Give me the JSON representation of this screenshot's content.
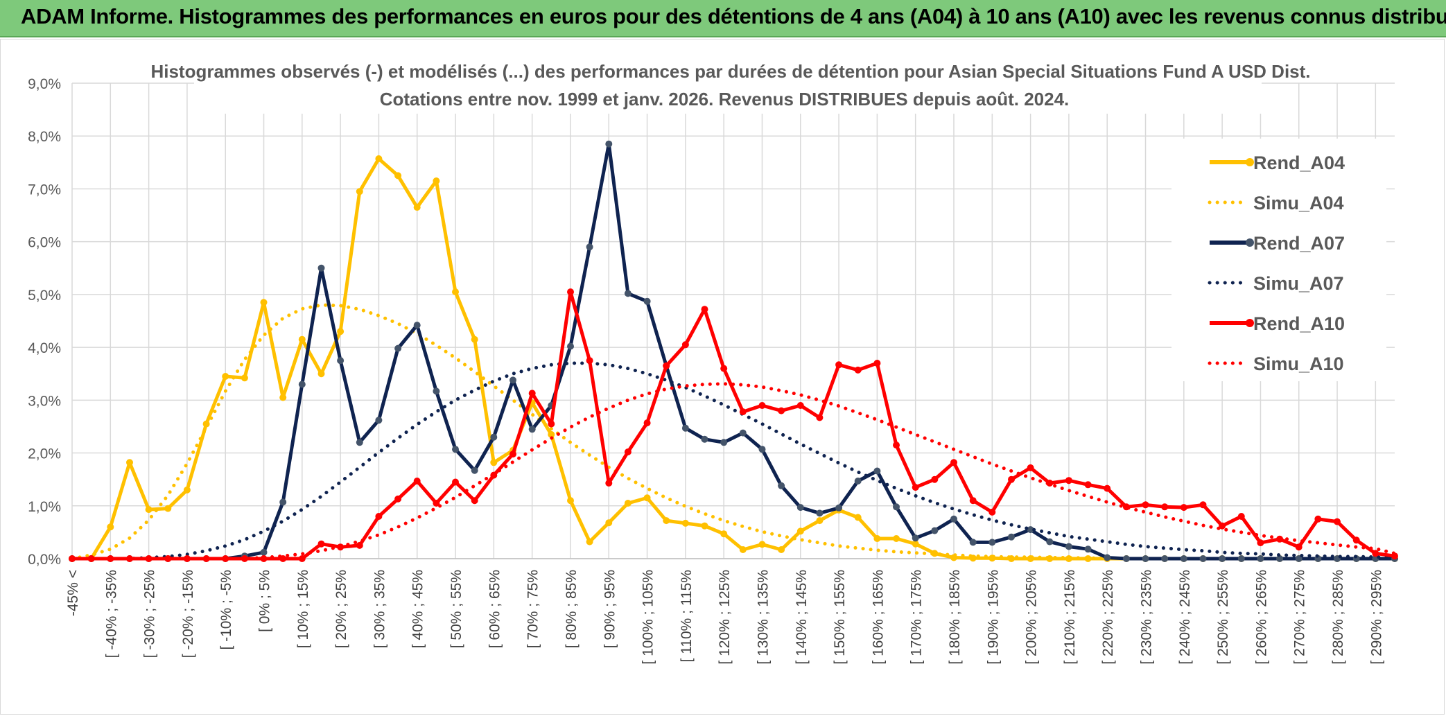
{
  "banner": {
    "title": "ADAM Informe. Histogrammes des performances en euros pour des détentions de 4 ans (A04) à 10 ans (A10) avec les revenus connus distribués"
  },
  "colors": {
    "banner_bg": "#7ec97b",
    "a04": "#ffc000",
    "a07": "#0f2350",
    "a07_marker": "#44546a",
    "a10": "#ff0000"
  },
  "chart_data": {
    "type": "line",
    "title_line1": "Histogrammes observés (-) et modélisés (...) des performances par durées de détention pour Asian Special Situations Fund A USD Dist.",
    "title_line2": "Cotations entre nov. 1999 et janv. 2026. Revenus DISTRIBUES depuis août. 2024.",
    "ylim": [
      0,
      9
    ],
    "yticks": [
      "0,0%",
      "1,0%",
      "2,0%",
      "3,0%",
      "4,0%",
      "5,0%",
      "6,0%",
      "7,0%",
      "8,0%",
      "9,0%"
    ],
    "grid": true,
    "legend_position": "top-right",
    "categories": [
      "-45% <",
      "[ -45% ; -40%",
      "[ -40% ; -35%",
      "[ -35% ; -30%",
      "[ -30% ; -25%",
      "[ -25% ; -20%",
      "[ -20% ; -15%",
      "[ -15% ; -10%",
      "[ -10% ; -5%",
      "[ -5% ; 0%",
      "[ 0% ; 5%",
      "[ 5% ; 10%",
      "[ 10% ; 15%",
      "[ 15% ; 20%",
      "[ 20% ; 25%",
      "[ 25% ; 30%",
      "[ 30% ; 35%",
      "[ 35% ; 40%",
      "[ 40% ; 45%",
      "[ 45% ; 50%",
      "[ 50% ; 55%",
      "[ 55% ; 60%",
      "[ 60% ; 65%",
      "[ 65% ; 70%",
      "[ 70% ; 75%",
      "[ 75% ; 80%",
      "[ 80% ; 85%",
      "[ 85% ; 90%",
      "[ 90% ; 95%",
      "[ 95% ; 100%",
      "[ 100% ; 105%",
      "[ 105% ; 110%",
      "[ 110% ; 115%",
      "[ 115% ; 120%",
      "[ 120% ; 125%",
      "[ 125% ; 130%",
      "[ 130% ; 135%",
      "[ 135% ; 140%",
      "[ 140% ; 145%",
      "[ 145% ; 150%",
      "[ 150% ; 155%",
      "[ 155% ; 160%",
      "[ 160% ; 165%",
      "[ 165% ; 170%",
      "[ 170% ; 175%",
      "[ 175% ; 180%",
      "[ 180% ; 185%",
      "[ 185% ; 190%",
      "[ 190% ; 195%",
      "[ 195% ; 200%",
      "[ 200% ; 205%",
      "[ 205% ; 210%",
      "[ 210% ; 215%",
      "[ 215% ; 220%",
      "[ 220% ; 225%",
      "[ 225% ; 230%",
      "[ 230% ; 235%",
      "[ 235% ; 240%",
      "[ 240% ; 245%",
      "[ 245% ; 250%",
      "[ 250% ; 255%",
      "[ 255% ; 260%",
      "[ 260% ; 265%",
      "[ 265% ; 270%",
      "[ 270% ; 275%",
      "[ 275% ; 280%",
      "[ 280% ; 285%",
      "[ 285% ; 290%",
      "[ 290% ; 295%",
      "[ 295% ; 300%"
    ],
    "shown_category_labels": [
      "-45% <",
      "[ -40% ; -35%",
      "[ -30% ; -25%",
      "[ -20% ; -15%",
      "[ -10% ; -5%",
      "[ 0% ; 5%",
      "[ 10% ; 15%",
      "[ 20% ; 25%",
      "[ 30% ; 35%",
      "[ 40% ; 45%",
      "[ 50% ; 55%",
      "[ 60% ; 65%",
      "[ 70% ; 75%",
      "[ 80% ; 85%",
      "[ 90% ; 95%",
      "[ 100% ; 105%",
      "[ 110% ; 115%",
      "[ 120% ; 125%",
      "[ 130% ; 135%",
      "[ 140% ; 145%",
      "[ 150% ; 155%",
      "[ 160% ; 165%",
      "[ 170% ; 175%",
      "[ 180% ; 185%",
      "[ 190% ; 195%",
      "[ 200% ; 205%",
      "[ 210% ; 215%",
      "[ 220% ; 225%",
      "[ 230% ; 235%",
      "[ 240% ; 245%",
      "[ 250% ; 255%",
      "[ 260% ; 265%",
      "[ 270% ; 275%",
      "[ 280% ; 285%",
      "[ 290% ; 295%"
    ],
    "series": [
      {
        "name": "Rend_A04",
        "style": "solid",
        "color": "#ffc000",
        "values": [
          0,
          0,
          0.6,
          1.82,
          0.93,
          0.95,
          1.3,
          2.55,
          3.45,
          3.42,
          4.85,
          3.05,
          4.15,
          3.5,
          4.3,
          6.95,
          7.57,
          7.25,
          6.65,
          7.15,
          5.05,
          4.15,
          1.82,
          2.05,
          2.95,
          2.35,
          1.1,
          0.32,
          0.68,
          1.05,
          1.15,
          0.72,
          0.67,
          0.62,
          0.47,
          0.17,
          0.27,
          0.17,
          0.52,
          0.72,
          0.92,
          0.78,
          0.38,
          0.38,
          0.28,
          0.1,
          0.02,
          0.01,
          0.01,
          0,
          0,
          0,
          0,
          0,
          0,
          0,
          0,
          0,
          0,
          0,
          0,
          0,
          0,
          0,
          0,
          0,
          0,
          0,
          0,
          0
        ]
      },
      {
        "name": "Simu_A04",
        "style": "dotted",
        "color": "#ffc000",
        "values": [
          0,
          0.07,
          0.18,
          0.39,
          0.73,
          1.2,
          1.8,
          2.48,
          3.17,
          3.77,
          4.23,
          4.55,
          4.73,
          4.8,
          4.79,
          4.72,
          4.6,
          4.45,
          4.26,
          4.04,
          3.8,
          3.54,
          3.27,
          3.0,
          2.73,
          2.46,
          2.2,
          1.96,
          1.73,
          1.52,
          1.33,
          1.15,
          0.99,
          0.85,
          0.72,
          0.61,
          0.51,
          0.43,
          0.36,
          0.3,
          0.24,
          0.2,
          0.16,
          0.13,
          0.11,
          0.09,
          0.07,
          0.05,
          0.04,
          0.03,
          0.03,
          0.02,
          0.02,
          0.01,
          0.01,
          0,
          0,
          0,
          0,
          0,
          0,
          0,
          0,
          0,
          0,
          0,
          0,
          0,
          0,
          0
        ]
      },
      {
        "name": "Rend_A07",
        "style": "solid",
        "color": "#0f2350",
        "marker": "#44546a",
        "values": [
          0,
          0,
          0,
          0,
          0,
          0,
          0,
          0,
          0,
          0.05,
          0.12,
          1.07,
          3.3,
          5.5,
          3.75,
          2.2,
          2.62,
          3.98,
          4.42,
          3.17,
          2.07,
          1.67,
          2.3,
          3.38,
          2.45,
          2.9,
          4.02,
          5.9,
          7.85,
          5.02,
          4.87,
          3.65,
          2.47,
          2.26,
          2.2,
          2.38,
          2.07,
          1.38,
          0.97,
          0.86,
          0.96,
          1.47,
          1.66,
          0.98,
          0.39,
          0.53,
          0.75,
          0.31,
          0.31,
          0.41,
          0.55,
          0.32,
          0.23,
          0.18,
          0.02,
          0,
          0,
          0,
          0,
          0,
          0,
          0,
          0,
          0,
          0,
          0,
          0,
          0,
          0,
          0
        ]
      },
      {
        "name": "Simu_A07",
        "style": "dotted",
        "color": "#0f2350",
        "values": [
          0,
          0,
          0,
          0,
          0.02,
          0.04,
          0.08,
          0.15,
          0.24,
          0.36,
          0.52,
          0.71,
          0.93,
          1.18,
          1.45,
          1.73,
          2.01,
          2.28,
          2.54,
          2.78,
          3.0,
          3.19,
          3.36,
          3.5,
          3.6,
          3.67,
          3.7,
          3.7,
          3.67,
          3.6,
          3.5,
          3.38,
          3.24,
          3.08,
          2.91,
          2.73,
          2.55,
          2.36,
          2.17,
          1.99,
          1.81,
          1.64,
          1.48,
          1.33,
          1.19,
          1.06,
          0.94,
          0.83,
          0.73,
          0.64,
          0.56,
          0.49,
          0.42,
          0.37,
          0.32,
          0.27,
          0.23,
          0.2,
          0.17,
          0.15,
          0.12,
          0.1,
          0.09,
          0.07,
          0.06,
          0.05,
          0.04,
          0.04,
          0.03,
          0.02
        ]
      },
      {
        "name": "Rend_A10",
        "style": "solid",
        "color": "#ff0000",
        "values": [
          0,
          0,
          0,
          0,
          0,
          0,
          0,
          0,
          0,
          0,
          0,
          0,
          0,
          0.28,
          0.22,
          0.25,
          0.8,
          1.13,
          1.47,
          1.05,
          1.45,
          1.1,
          1.58,
          1.98,
          3.13,
          2.55,
          5.05,
          3.75,
          1.43,
          2.02,
          2.57,
          3.65,
          4.05,
          4.72,
          3.6,
          2.78,
          2.9,
          2.8,
          2.9,
          2.67,
          3.67,
          3.57,
          3.7,
          2.15,
          1.35,
          1.5,
          1.82,
          1.1,
          0.88,
          1.5,
          1.72,
          1.43,
          1.48,
          1.4,
          1.33,
          0.98,
          1.02,
          0.98,
          0.97,
          1.02,
          0.62,
          0.8,
          0.3,
          0.37,
          0.22,
          0.75,
          0.7,
          0.35,
          0.1,
          0.05
        ]
      },
      {
        "name": "Simu_A10",
        "style": "dotted",
        "color": "#ff0000",
        "values": [
          0,
          0,
          0,
          0,
          0,
          0,
          0,
          0,
          0,
          0,
          0.02,
          0.05,
          0.09,
          0.15,
          0.23,
          0.33,
          0.45,
          0.6,
          0.77,
          0.96,
          1.16,
          1.38,
          1.6,
          1.83,
          2.06,
          2.28,
          2.49,
          2.68,
          2.85,
          3.0,
          3.12,
          3.21,
          3.27,
          3.3,
          3.31,
          3.29,
          3.25,
          3.18,
          3.1,
          3.0,
          2.89,
          2.76,
          2.63,
          2.49,
          2.35,
          2.21,
          2.07,
          1.93,
          1.79,
          1.66,
          1.53,
          1.41,
          1.29,
          1.18,
          1.07,
          0.97,
          0.88,
          0.79,
          0.71,
          0.63,
          0.56,
          0.5,
          0.44,
          0.39,
          0.34,
          0.3,
          0.26,
          0.22,
          0.19,
          0.1
        ]
      }
    ]
  }
}
